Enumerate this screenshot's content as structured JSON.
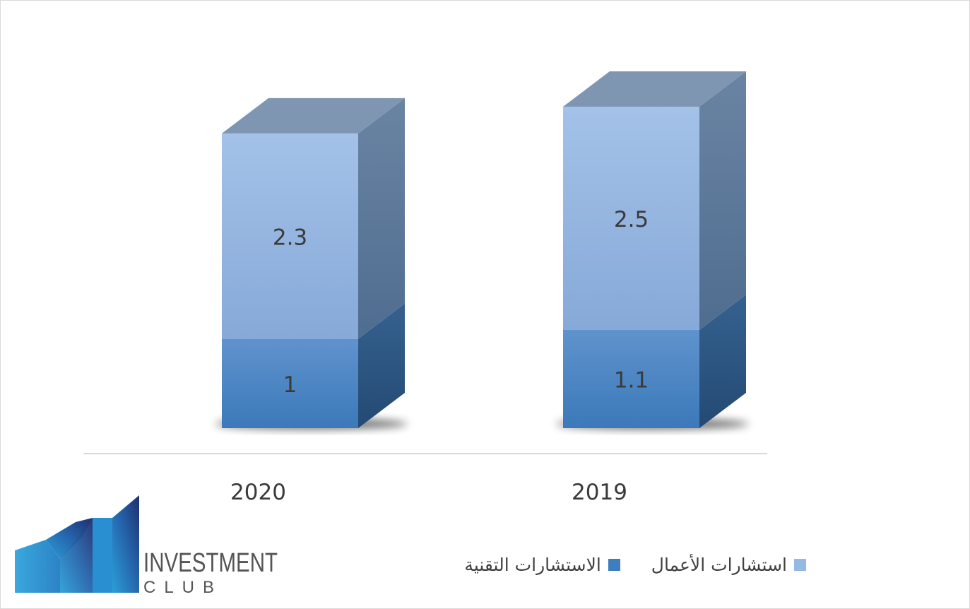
{
  "chart_data": {
    "type": "bar",
    "stacked": true,
    "three_d": true,
    "categories": [
      "2020",
      "2019"
    ],
    "series": [
      {
        "name": "الاستشارات التقنية",
        "values": [
          1,
          1.1
        ],
        "color": "#3e7dc0"
      },
      {
        "name": "استشارات الأعمال",
        "values": [
          2.3,
          2.5
        ],
        "color": "#96b8e4"
      }
    ],
    "title": "",
    "xlabel": "",
    "ylabel": "",
    "legend_position": "bottom",
    "grid": false
  },
  "logo": {
    "line1": "INVESTMENT",
    "line2": "CLUB"
  }
}
